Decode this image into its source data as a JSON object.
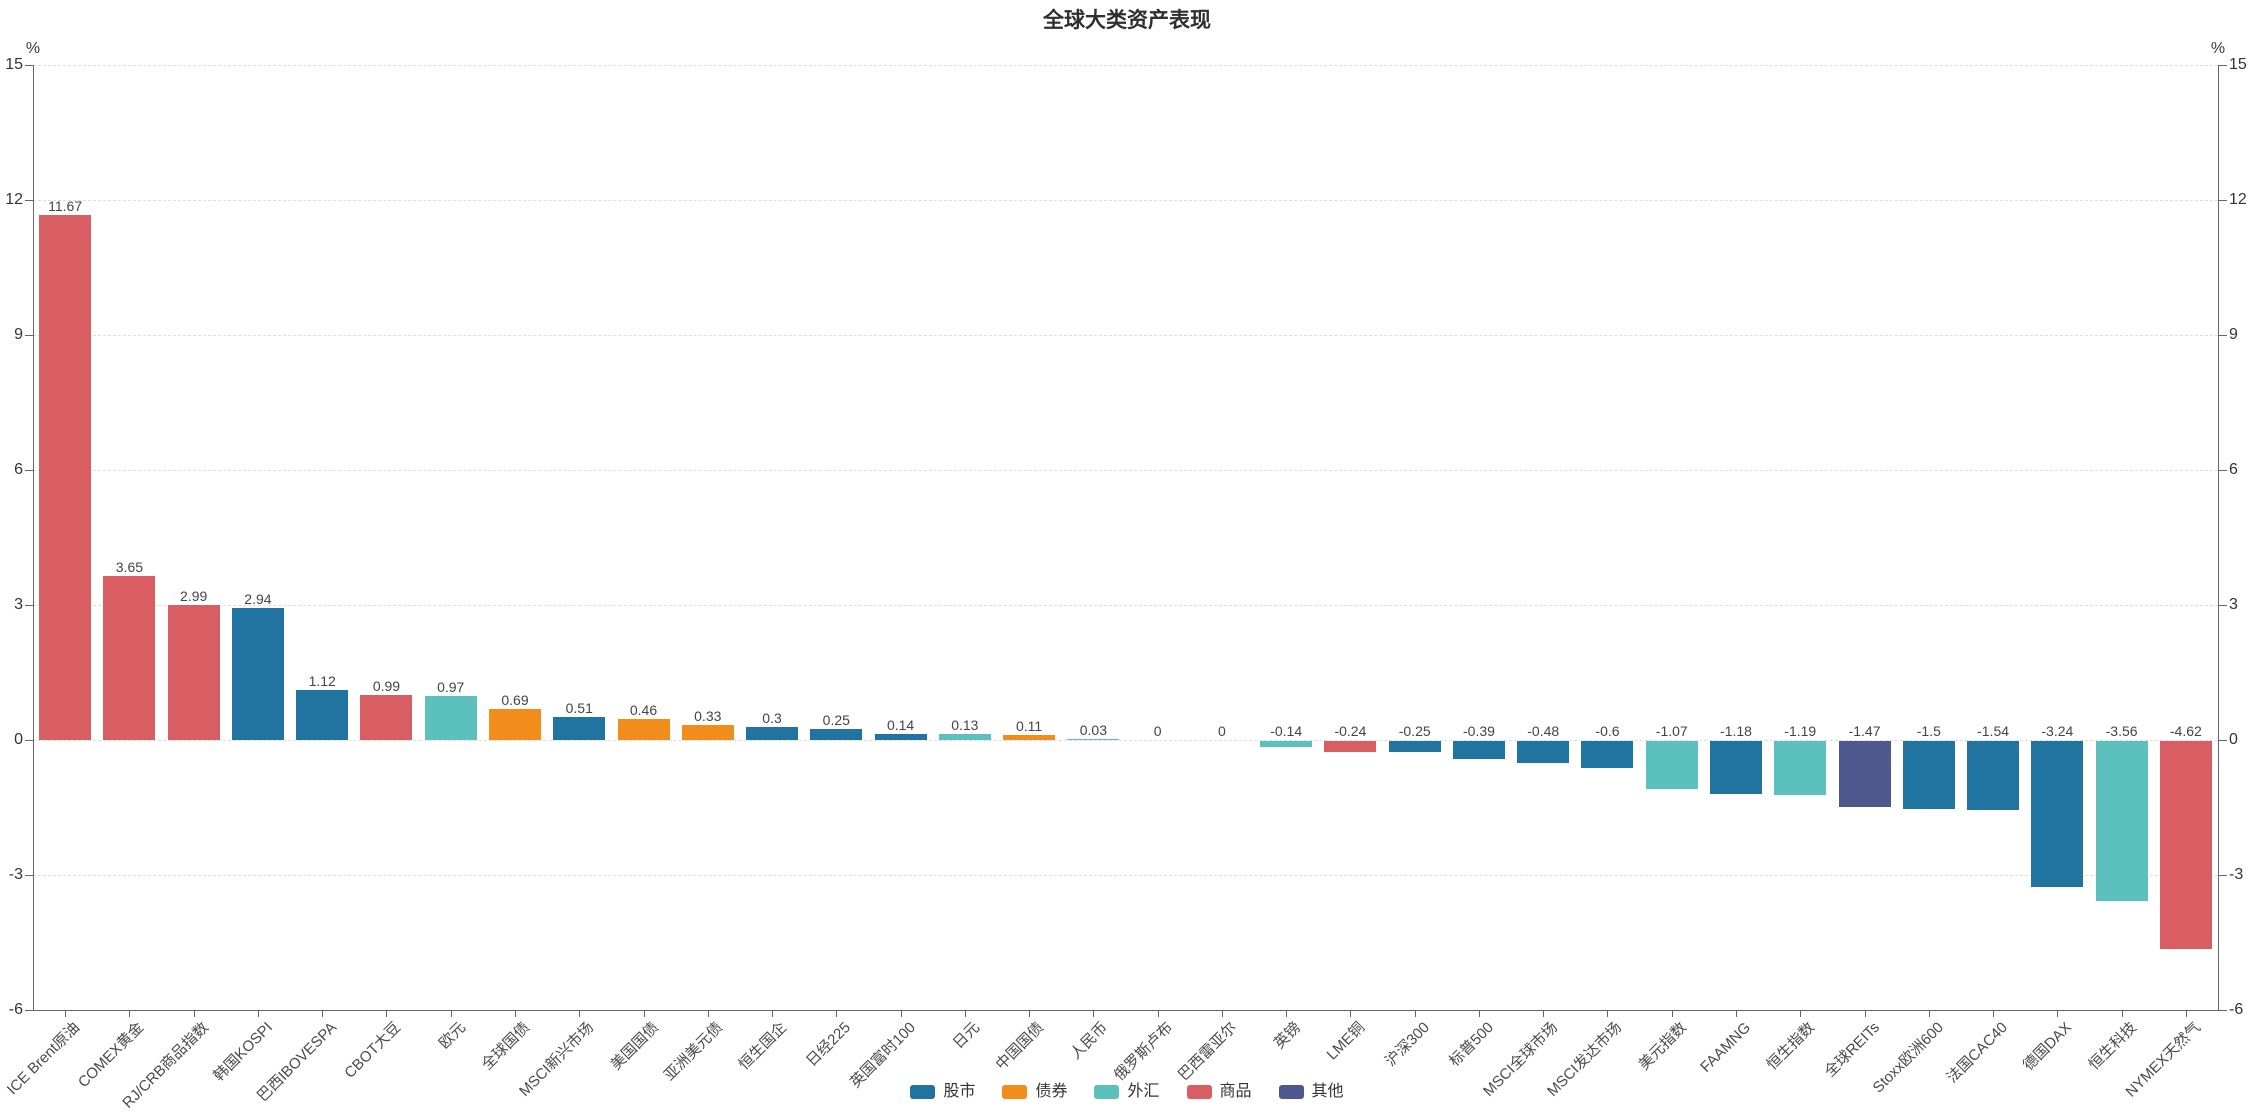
{
  "title": "全球大类资产表现",
  "chart_data": {
    "type": "bar",
    "title": "全球大类资产表现",
    "unit_label": "%",
    "ylabel": "%",
    "xlabel": "",
    "ylim": [
      -6,
      15
    ],
    "y_ticks": [
      "15",
      "12",
      "9",
      "6",
      "3",
      "0",
      "-3",
      "-6"
    ],
    "grid": "horizontal dashed",
    "legend_position": "bottom-center",
    "colors": {
      "blue": "#2174a0",
      "orange": "#f28c1b",
      "teal": "#5cc0bc",
      "red": "#d95e63",
      "purple": "#4d588f"
    },
    "legend": [
      {
        "label": "股市",
        "color_key": "blue"
      },
      {
        "label": "债券",
        "color_key": "orange"
      },
      {
        "label": "外汇",
        "color_key": "teal"
      },
      {
        "label": "商品",
        "color_key": "red"
      },
      {
        "label": "其他",
        "color_key": "purple"
      }
    ],
    "bars": [
      {
        "category": "ICE Brent原油",
        "value": 11.67,
        "label": "11.67",
        "color_key": "red"
      },
      {
        "category": "COMEX黄金",
        "value": 3.65,
        "label": "3.65",
        "color_key": "red"
      },
      {
        "category": "RJ/CRB商品指数",
        "value": 2.99,
        "label": "2.99",
        "color_key": "red"
      },
      {
        "category": "韩国KOSPI",
        "value": 2.94,
        "label": "2.94",
        "color_key": "blue"
      },
      {
        "category": "巴西IBOVESPA",
        "value": 1.12,
        "label": "1.12",
        "color_key": "blue"
      },
      {
        "category": "CBOT大豆",
        "value": 0.99,
        "label": "0.99",
        "color_key": "red"
      },
      {
        "category": "欧元",
        "value": 0.97,
        "label": "0.97",
        "color_key": "teal"
      },
      {
        "category": "全球国债",
        "value": 0.69,
        "label": "0.69",
        "color_key": "orange"
      },
      {
        "category": "MSCI新兴市场",
        "value": 0.51,
        "label": "0.51",
        "color_key": "blue"
      },
      {
        "category": "美国国债",
        "value": 0.46,
        "label": "0.46",
        "color_key": "orange"
      },
      {
        "category": "亚洲美元债",
        "value": 0.33,
        "label": "0.33",
        "color_key": "orange"
      },
      {
        "category": "恒生国企",
        "value": 0.3,
        "label": "0.3",
        "color_key": "blue"
      },
      {
        "category": "日经225",
        "value": 0.25,
        "label": "0.25",
        "color_key": "blue"
      },
      {
        "category": "英国富时100",
        "value": 0.14,
        "label": "0.14",
        "color_key": "blue"
      },
      {
        "category": "日元",
        "value": 0.13,
        "label": "0.13",
        "color_key": "teal"
      },
      {
        "category": "中国国债",
        "value": 0.11,
        "label": "0.11",
        "color_key": "orange"
      },
      {
        "category": "人民币",
        "value": 0.03,
        "label": "0.03",
        "color_key": "teal"
      },
      {
        "category": "俄罗斯卢布",
        "value": 0,
        "label": "0",
        "color_key": "teal"
      },
      {
        "category": "巴西雷亚尔",
        "value": 0,
        "label": "0",
        "color_key": "teal"
      },
      {
        "category": "英镑",
        "value": -0.14,
        "label": "-0.14",
        "color_key": "teal"
      },
      {
        "category": "LME铜",
        "value": -0.24,
        "label": "-0.24",
        "color_key": "red"
      },
      {
        "category": "沪深300",
        "value": -0.25,
        "label": "-0.25",
        "color_key": "blue"
      },
      {
        "category": "标普500",
        "value": -0.39,
        "label": "-0.39",
        "color_key": "blue"
      },
      {
        "category": "MSCI全球市场",
        "value": -0.48,
        "label": "-0.48",
        "color_key": "blue"
      },
      {
        "category": "MSCI发达市场",
        "value": -0.6,
        "label": "-0.6",
        "color_key": "blue"
      },
      {
        "category": "美元指数",
        "value": -1.07,
        "label": "-1.07",
        "color_key": "teal"
      },
      {
        "category": "FAAMNG",
        "value": -1.18,
        "label": "-1.18",
        "color_key": "blue"
      },
      {
        "category": "恒生指数",
        "value": -1.19,
        "label": "-1.19",
        "color_key": "teal"
      },
      {
        "category": "全球REITs",
        "value": -1.47,
        "label": "-1.47",
        "color_key": "purple"
      },
      {
        "category": "Stoxx欧洲600",
        "value": -1.5,
        "label": "-1.5",
        "color_key": "blue"
      },
      {
        "category": "法国CAC40",
        "value": -1.54,
        "label": "-1.54",
        "color_key": "blue"
      },
      {
        "category": "德国DAX",
        "value": -3.24,
        "label": "-3.24",
        "color_key": "blue"
      },
      {
        "category": "恒生科技",
        "value": -3.56,
        "label": "-3.56",
        "color_key": "teal"
      },
      {
        "category": "NYMEX天然气",
        "value": -4.62,
        "label": "-4.62",
        "color_key": "red"
      }
    ]
  }
}
